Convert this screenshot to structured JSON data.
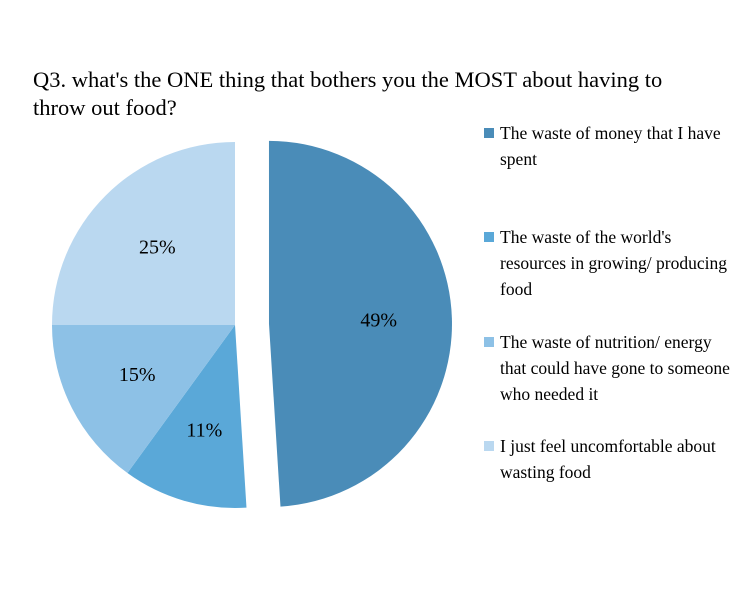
{
  "chart_data": {
    "type": "pie",
    "title": "Q3. what's the ONE thing that bothers you the MOST about having to throw out food?",
    "slices": [
      {
        "label": "The waste of money that I have spent",
        "value": 49,
        "data_label": "49%",
        "color": "#4a8cb8",
        "exploded": true
      },
      {
        "label": "The waste of the world's resources in growing/ producing food",
        "value": 11,
        "data_label": "11%",
        "color": "#5aa8d8",
        "exploded": false
      },
      {
        "label": "The waste of nutrition/ energy that could have gone to someone who needed it",
        "value": 15,
        "data_label": "15%",
        "color": "#8dc1e6",
        "exploded": false
      },
      {
        "label": "I just feel uncomfortable about wasting food",
        "value": 25,
        "data_label": "25%",
        "color": "#bad8f0",
        "exploded": false
      }
    ],
    "legend_position": "right"
  }
}
